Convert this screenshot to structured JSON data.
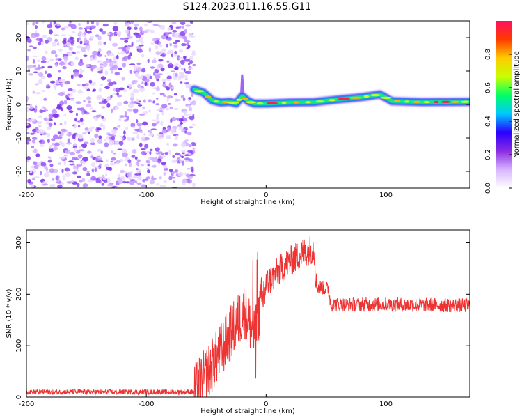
{
  "title": "S124.2023.011.16.55.G11",
  "chart_data": [
    {
      "type": "heatmap",
      "xlabel": "Height of straight line (km)",
      "ylabel": "Frequency (Hz)",
      "xlim": [
        -200,
        170
      ],
      "ylim": [
        -25,
        25
      ],
      "xticks": [
        -200,
        -100,
        0,
        100
      ],
      "yticks": [
        -20,
        -10,
        0,
        10,
        20
      ],
      "noise_region_x": [
        -200,
        -60
      ],
      "ridge": [
        {
          "x": -60,
          "y": 4.5
        },
        {
          "x": -52,
          "y": 3.5
        },
        {
          "x": -45,
          "y": 1.2
        },
        {
          "x": -38,
          "y": 0.6
        },
        {
          "x": -30,
          "y": 0.8
        },
        {
          "x": -25,
          "y": 0.3
        },
        {
          "x": -20,
          "y": 2.5
        },
        {
          "x": -15,
          "y": 1.0
        },
        {
          "x": -10,
          "y": 0.3
        },
        {
          "x": 0,
          "y": 0.3
        },
        {
          "x": 20,
          "y": 0.6
        },
        {
          "x": 40,
          "y": 0.7
        },
        {
          "x": 60,
          "y": 1.5
        },
        {
          "x": 80,
          "y": 2.2
        },
        {
          "x": 95,
          "y": 3.0
        },
        {
          "x": 105,
          "y": 1.0
        },
        {
          "x": 130,
          "y": 0.7
        },
        {
          "x": 170,
          "y": 0.8
        }
      ],
      "colorbar": {
        "label": "Normalized spectral amplitude",
        "range": [
          0,
          1
        ],
        "ticks": [
          "0.0",
          "0.2",
          "0.4",
          "0.6",
          "0.8"
        ],
        "tick_values": [
          0,
          0.2,
          0.4,
          0.6,
          0.8
        ],
        "colors": [
          "#ffffff",
          "#d7b4ff",
          "#8a2be2",
          "#2a00ff",
          "#00c8ff",
          "#00ff66",
          "#c8ff00",
          "#ffcc00",
          "#ff3a00",
          "#ff1060"
        ]
      }
    },
    {
      "type": "line",
      "xlabel": "Height of straight line (km)",
      "ylabel": "SNR (10 * v/v)",
      "xlim": [
        -200,
        170
      ],
      "ylim": [
        0,
        325
      ],
      "xticks": [
        -200,
        -100,
        0,
        100
      ],
      "yticks": [
        0,
        100,
        200,
        300
      ],
      "color": "#ee3333",
      "trend": [
        {
          "x": -200,
          "y": 10
        },
        {
          "x": -120,
          "y": 10
        },
        {
          "x": -60,
          "y": 10
        },
        {
          "x": -48,
          "y": 50
        },
        {
          "x": -38,
          "y": 90
        },
        {
          "x": -28,
          "y": 130
        },
        {
          "x": -18,
          "y": 170
        },
        {
          "x": -10,
          "y": 120
        },
        {
          "x": 0,
          "y": 220
        },
        {
          "x": 15,
          "y": 255
        },
        {
          "x": 30,
          "y": 280
        },
        {
          "x": 40,
          "y": 290
        },
        {
          "x": 42,
          "y": 215
        },
        {
          "x": 52,
          "y": 210
        },
        {
          "x": 54,
          "y": 180
        },
        {
          "x": 100,
          "y": 180
        },
        {
          "x": 170,
          "y": 178
        }
      ]
    }
  ]
}
